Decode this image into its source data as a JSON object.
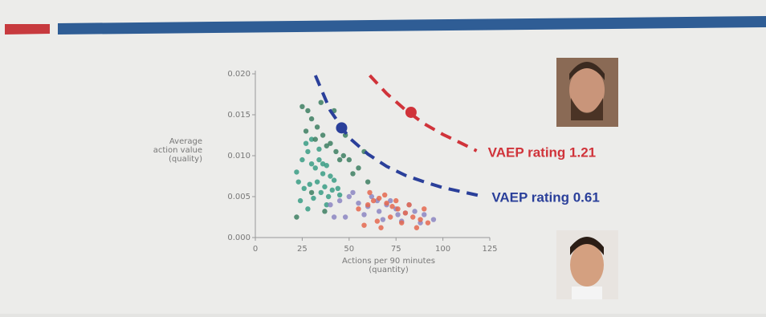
{
  "chart_data": {
    "type": "scatter",
    "xlabel": [
      "Actions per 90 minutes",
      "(quantity)"
    ],
    "ylabel": [
      "Average",
      "action value",
      "(quality)"
    ],
    "xlim": [
      0,
      125
    ],
    "ylim": [
      0,
      0.02
    ],
    "xticks": [
      0,
      25,
      50,
      75,
      100,
      125
    ],
    "yticks": [
      {
        "value": 0,
        "label": "0.000"
      },
      0.005,
      {
        "value": 0.01,
        "label": "0.010"
      },
      0.015,
      {
        "value": 0.02,
        "label": "0.020"
      }
    ],
    "series": [
      {
        "color": "#3a9e85",
        "x": [
          22,
          25,
          28,
          30,
          32,
          34,
          36,
          38,
          40,
          42,
          26,
          29,
          33,
          37,
          41,
          24,
          31,
          35,
          39,
          44,
          27,
          30,
          34,
          23,
          36,
          45,
          28,
          38
        ],
        "values": [
          0.008,
          0.0095,
          0.0105,
          0.009,
          0.0085,
          0.0095,
          0.009,
          0.0088,
          0.0075,
          0.007,
          0.006,
          0.0065,
          0.0068,
          0.0062,
          0.0058,
          0.0045,
          0.0048,
          0.0055,
          0.005,
          0.006,
          0.0115,
          0.012,
          0.0108,
          0.0068,
          0.0078,
          0.0052,
          0.0035,
          0.004
        ]
      },
      {
        "color": "#8c86c2",
        "x": [
          40,
          45,
          50,
          55,
          60,
          65,
          70,
          75,
          80,
          85,
          90,
          95,
          48,
          58,
          68,
          78,
          88,
          52,
          62,
          72,
          82,
          42,
          66,
          76
        ],
        "values": [
          0.004,
          0.0045,
          0.005,
          0.0042,
          0.0038,
          0.0045,
          0.004,
          0.0035,
          0.003,
          0.0032,
          0.0028,
          0.0022,
          0.0025,
          0.0028,
          0.0022,
          0.002,
          0.0018,
          0.0055,
          0.005,
          0.0045,
          0.004,
          0.0025,
          0.0032,
          0.0028
        ]
      },
      {
        "color": "#e5694f",
        "x": [
          55,
          60,
          63,
          66,
          70,
          73,
          76,
          80,
          84,
          88,
          92,
          58,
          65,
          72,
          78,
          86,
          61,
          69,
          75,
          82,
          67,
          90
        ],
        "values": [
          0.0035,
          0.004,
          0.0045,
          0.0048,
          0.0042,
          0.0038,
          0.0035,
          0.003,
          0.0025,
          0.0022,
          0.0018,
          0.0015,
          0.002,
          0.0025,
          0.0018,
          0.0012,
          0.0055,
          0.0052,
          0.0045,
          0.004,
          0.0012,
          0.0035
        ]
      },
      {
        "color": "#3d7f62",
        "x": [
          25,
          28,
          30,
          33,
          36,
          40,
          43,
          47,
          50,
          55,
          27,
          32,
          38,
          45,
          52,
          60,
          35,
          42,
          48,
          58,
          30,
          22,
          37
        ],
        "values": [
          0.016,
          0.0155,
          0.0145,
          0.0135,
          0.0125,
          0.0115,
          0.0105,
          0.01,
          0.0095,
          0.0085,
          0.013,
          0.012,
          0.0112,
          0.0095,
          0.0078,
          0.0068,
          0.0165,
          0.0155,
          0.0125,
          0.0105,
          0.0055,
          0.0025,
          0.0032
        ]
      },
      {
        "color": "#2a3f9a",
        "x": [
          46
        ],
        "values": [
          0.0134
        ],
        "highlight": true
      },
      {
        "color": "#d0333a",
        "x": [
          83
        ],
        "values": [
          0.0153
        ],
        "highlight": true
      }
    ],
    "curves": [
      {
        "color": "#d0333a",
        "x": [
          61,
          70,
          80,
          90,
          100,
          110,
          118
        ],
        "values": [
          0.0198,
          0.0176,
          0.0156,
          0.0139,
          0.0126,
          0.0115,
          0.0106
        ],
        "annotation": "VAEP rating 1.21"
      },
      {
        "color": "#2a3f9a",
        "x": [
          32,
          40,
          50,
          60,
          70,
          80,
          90,
          100,
          110,
          120
        ],
        "values": [
          0.0198,
          0.0155,
          0.0122,
          0.0102,
          0.0087,
          0.0076,
          0.0068,
          0.0061,
          0.0056,
          0.0051
        ],
        "annotation": "VAEP rating 0.61"
      }
    ]
  }
}
